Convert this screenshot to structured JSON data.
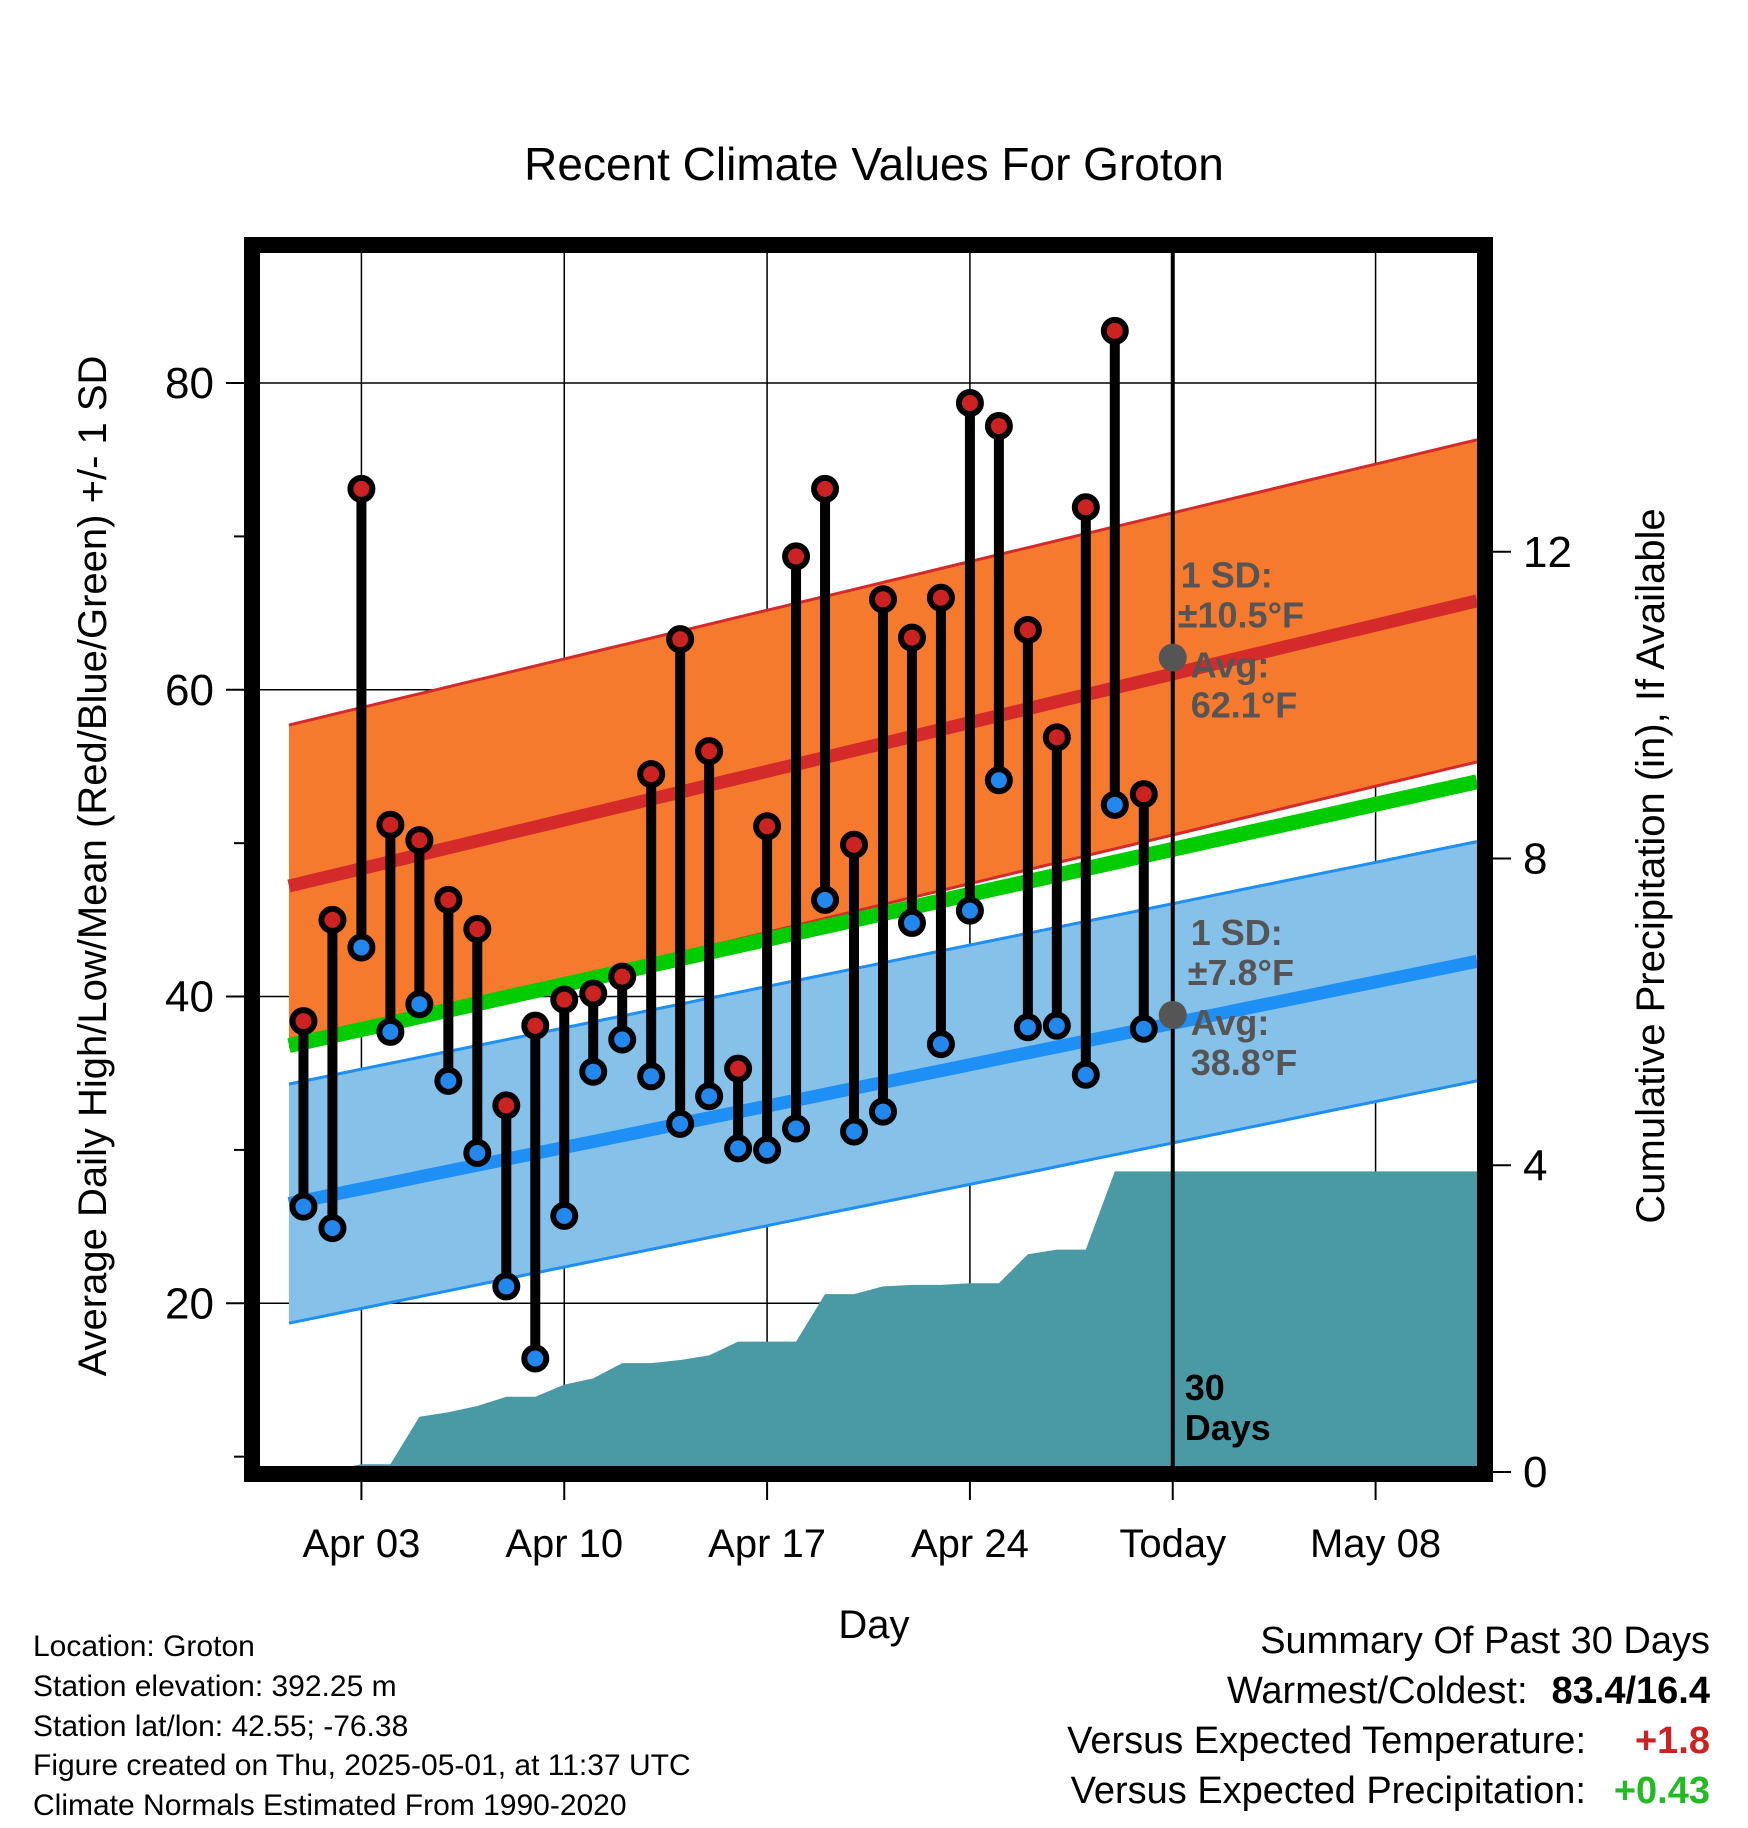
{
  "title": "Recent Climate Values For Groton",
  "footer": {
    "location": "Location: Groton",
    "elevation": "Station elevation: 392.25 m",
    "latlon": "Station lat/lon: 42.55; -76.38",
    "created": "Figure created on Thu, 2025-05-01, at 11:37 UTC",
    "normals": "Climate Normals Estimated From 1990-2020"
  },
  "summary": {
    "heading": "Summary Of Past 30 Days",
    "warmest_label": "Warmest/Coldest:",
    "warmest_value": "83.4/16.4",
    "temp_label": "Versus Expected Temperature:",
    "temp_value": "+1.8",
    "precip_label": "Versus Expected Precipitation:",
    "precip_value": "+0.43"
  },
  "colors": {
    "high_marker": "#cc2222",
    "low_marker": "#2288ee",
    "mean_line": "#00cc00",
    "high_band": "#f57a2e",
    "high_avg": "#d42a2a",
    "low_band": "#85c1e9",
    "low_avg": "#1e8ff5",
    "precip_fill": "#4a9aa5",
    "annotation": "#555555",
    "temp_delta": "#cc2222",
    "precip_delta": "#22bb22"
  },
  "chart_data": {
    "type": "line",
    "x_day_range": [
      -1.5,
      40.5
    ],
    "xlabel": "Day",
    "x_ticks": [
      {
        "day": 2,
        "label": "Apr 03"
      },
      {
        "day": 9,
        "label": "Apr 10"
      },
      {
        "day": 16,
        "label": "Apr 17"
      },
      {
        "day": 23,
        "label": "Apr 24"
      },
      {
        "day": 30,
        "label": "Today"
      },
      {
        "day": 37,
        "label": "May 08"
      }
    ],
    "y_left": {
      "label": "Average Daily High/Low/Mean (Red/Blue/Green) +/- 1 SD",
      "range": [
        9,
        89
      ],
      "major_ticks": [
        20,
        40,
        60,
        80
      ],
      "minor_ticks": [
        10,
        30,
        50,
        70
      ]
    },
    "y_right": {
      "label": "Cumulative Precipitation (in), If Available",
      "range": [
        0,
        16
      ],
      "ticks": [
        0,
        4,
        8,
        12
      ]
    },
    "days": [
      {
        "day": 0,
        "date": "Apr 01",
        "high": 38.4,
        "low": 26.3
      },
      {
        "day": 1,
        "date": "Apr 02",
        "high": 45.0,
        "low": 24.9
      },
      {
        "day": 2,
        "date": "Apr 03",
        "high": 73.1,
        "low": 43.2
      },
      {
        "day": 3,
        "date": "Apr 04",
        "high": 51.2,
        "low": 37.7
      },
      {
        "day": 4,
        "date": "Apr 05",
        "high": 50.2,
        "low": 39.5
      },
      {
        "day": 5,
        "date": "Apr 06",
        "high": 46.3,
        "low": 34.5
      },
      {
        "day": 6,
        "date": "Apr 07",
        "high": 44.4,
        "low": 29.8
      },
      {
        "day": 7,
        "date": "Apr 08",
        "high": 32.9,
        "low": 21.1
      },
      {
        "day": 8,
        "date": "Apr 09",
        "high": 38.1,
        "low": 16.4
      },
      {
        "day": 9,
        "date": "Apr 10",
        "high": 39.8,
        "low": 25.7
      },
      {
        "day": 10,
        "date": "Apr 11",
        "high": 40.2,
        "low": 35.1
      },
      {
        "day": 11,
        "date": "Apr 12",
        "high": 41.3,
        "low": 37.2
      },
      {
        "day": 12,
        "date": "Apr 13",
        "high": 54.5,
        "low": 34.8
      },
      {
        "day": 13,
        "date": "Apr 14",
        "high": 63.3,
        "low": 31.7
      },
      {
        "day": 14,
        "date": "Apr 15",
        "high": 56.0,
        "low": 33.5
      },
      {
        "day": 15,
        "date": "Apr 16",
        "high": 35.3,
        "low": 30.1
      },
      {
        "day": 16,
        "date": "Apr 17",
        "high": 51.1,
        "low": 30.0
      },
      {
        "day": 17,
        "date": "Apr 18",
        "high": 68.7,
        "low": 31.4
      },
      {
        "day": 18,
        "date": "Apr 19",
        "high": 73.1,
        "low": 46.3
      },
      {
        "day": 19,
        "date": "Apr 20",
        "high": 49.9,
        "low": 31.2
      },
      {
        "day": 20,
        "date": "Apr 21",
        "high": 65.9,
        "low": 32.5
      },
      {
        "day": 21,
        "date": "Apr 22",
        "high": 63.4,
        "low": 44.8
      },
      {
        "day": 22,
        "date": "Apr 23",
        "high": 66.0,
        "low": 36.9
      },
      {
        "day": 23,
        "date": "Apr 24",
        "high": 78.7,
        "low": 45.6
      },
      {
        "day": 24,
        "date": "Apr 25",
        "high": 77.2,
        "low": 54.1
      },
      {
        "day": 25,
        "date": "Apr 26",
        "high": 63.9,
        "low": 38.0
      },
      {
        "day": 26,
        "date": "Apr 27",
        "high": 56.9,
        "low": 38.1
      },
      {
        "day": 27,
        "date": "Apr 28",
        "high": 71.9,
        "low": 34.9
      },
      {
        "day": 28,
        "date": "Apr 29",
        "high": 83.4,
        "low": 52.5
      },
      {
        "day": 29,
        "date": "Apr 30",
        "high": 53.2,
        "low": 37.9
      }
    ],
    "normal_high": {
      "start": 47.2,
      "end": 65.8,
      "sd": 10.5
    },
    "normal_low": {
      "start": 26.5,
      "end": 42.3,
      "sd": 7.8
    },
    "normal_mean": {
      "start": 36.8,
      "end": 54.0
    },
    "today_normals": {
      "day": 30,
      "high": 62.1,
      "low": 38.8
    },
    "precip_cumulative": [
      {
        "day": -0.5,
        "value": 0.0
      },
      {
        "day": 0,
        "value": 0.0
      },
      {
        "day": 1,
        "value": 0.03
      },
      {
        "day": 2,
        "value": 0.1
      },
      {
        "day": 3,
        "value": 0.1
      },
      {
        "day": 4,
        "value": 0.72
      },
      {
        "day": 5,
        "value": 0.78
      },
      {
        "day": 6,
        "value": 0.86
      },
      {
        "day": 7,
        "value": 0.98
      },
      {
        "day": 8,
        "value": 0.98
      },
      {
        "day": 9,
        "value": 1.14
      },
      {
        "day": 10,
        "value": 1.22
      },
      {
        "day": 11,
        "value": 1.42
      },
      {
        "day": 12,
        "value": 1.42
      },
      {
        "day": 13,
        "value": 1.46
      },
      {
        "day": 14,
        "value": 1.52
      },
      {
        "day": 15,
        "value": 1.7
      },
      {
        "day": 16,
        "value": 1.7
      },
      {
        "day": 17,
        "value": 1.7
      },
      {
        "day": 18,
        "value": 2.32
      },
      {
        "day": 19,
        "value": 2.32
      },
      {
        "day": 20,
        "value": 2.42
      },
      {
        "day": 21,
        "value": 2.44
      },
      {
        "day": 22,
        "value": 2.44
      },
      {
        "day": 23,
        "value": 2.46
      },
      {
        "day": 24,
        "value": 2.46
      },
      {
        "day": 25,
        "value": 2.84
      },
      {
        "day": 26,
        "value": 2.9
      },
      {
        "day": 27,
        "value": 2.9
      },
      {
        "day": 28,
        "value": 3.92
      },
      {
        "day": 29,
        "value": 3.92
      },
      {
        "day": 30,
        "value": 3.92
      },
      {
        "day": 40.5,
        "value": 3.92
      }
    ],
    "annotations": {
      "high_sd": "1 SD:",
      "high_sd_value": "±10.5°F",
      "high_avg_label": "Avg:",
      "high_avg_value": "62.1°F",
      "low_sd": "1 SD:",
      "low_sd_value": "±7.8°F",
      "low_avg_label": "Avg:",
      "low_avg_value": "38.8°F",
      "window_count": "30",
      "window_unit": "Days"
    }
  }
}
